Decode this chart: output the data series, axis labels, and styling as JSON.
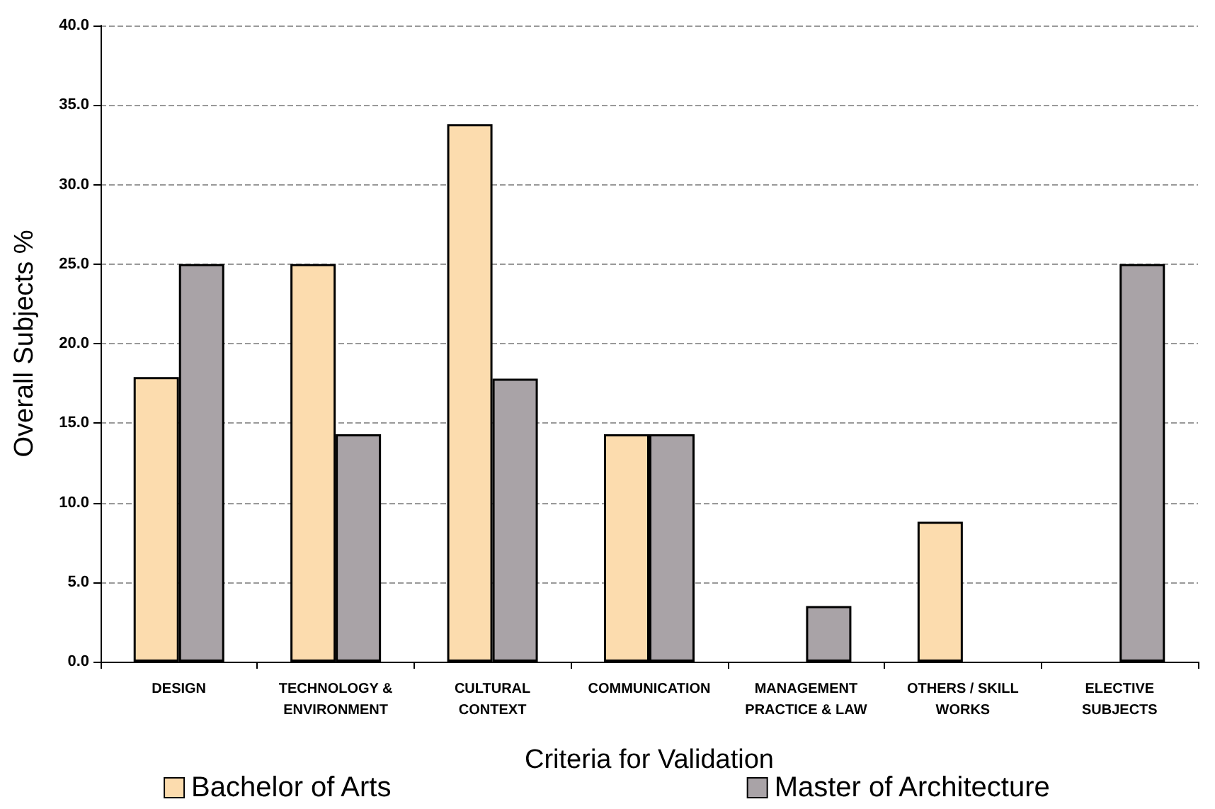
{
  "chart_data": {
    "type": "bar",
    "xlabel": "Criteria for Validation",
    "ylabel": "Overall Subjects %",
    "categories": [
      "DESIGN",
      "TECHNOLOGY &\nENVIRONMENT",
      "CULTURAL\nCONTEXT",
      "COMMUNICATION",
      "MANAGEMENT\nPRACTICE & LAW",
      "OTHERS / SKILL\nWORKS",
      "ELECTIVE\nSUBJECTS"
    ],
    "series": [
      {
        "name": "Bachelor of Arts",
        "color": "#fcdcae",
        "values": [
          17.9,
          25.0,
          33.8,
          14.3,
          null,
          8.8,
          null
        ]
      },
      {
        "name": "Master of Architecture",
        "color": "#a9a3a7",
        "values": [
          25.0,
          14.3,
          17.8,
          14.3,
          3.5,
          null,
          25.0
        ]
      }
    ],
    "ylim": [
      0,
      40
    ],
    "yticks": [
      {
        "value": 0,
        "label": "0.0"
      },
      {
        "value": 5,
        "label": "5.0"
      },
      {
        "value": 10,
        "label": "10.0"
      },
      {
        "value": 15,
        "label": "15.0"
      },
      {
        "value": 20,
        "label": "20.0"
      },
      {
        "value": 25,
        "label": "25.0"
      },
      {
        "value": 30,
        "label": "30.0"
      },
      {
        "value": 35,
        "label": "35.0"
      },
      {
        "value": 40,
        "label": "40.0"
      }
    ],
    "grid": "y",
    "legend": "bottom"
  }
}
